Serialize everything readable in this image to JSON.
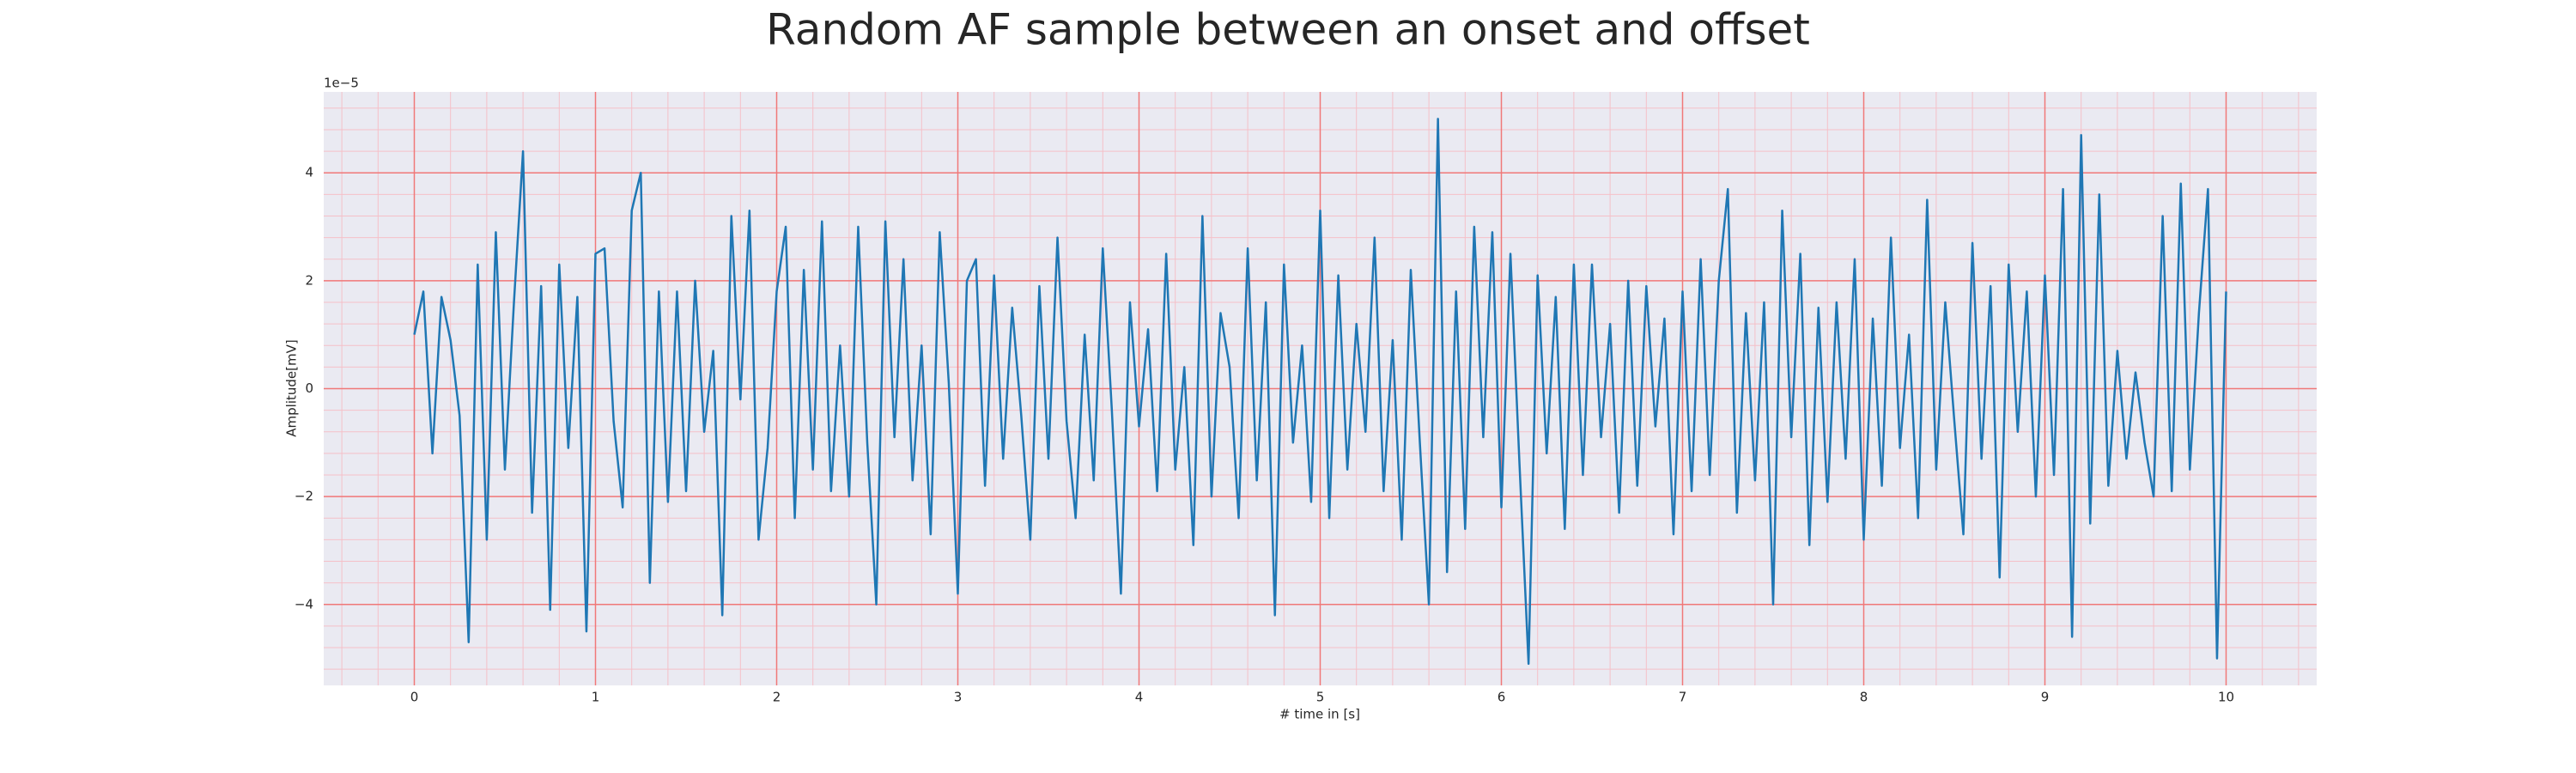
{
  "chart_data": {
    "type": "line",
    "title": "Random AF sample between an onset and offset",
    "x_label": "# time in [s]",
    "y_label": "Amplitude[mV]",
    "y_offset_text": "1e−5",
    "x": [
      0,
      0.05,
      0.1,
      0.15,
      0.2,
      0.25,
      0.3,
      0.35,
      0.4,
      0.45,
      0.5,
      0.55,
      0.6,
      0.65,
      0.7,
      0.75,
      0.8,
      0.85,
      0.9,
      0.95,
      1,
      1.05,
      1.1,
      1.15,
      1.2,
      1.25,
      1.3,
      1.35,
      1.4,
      1.45,
      1.5,
      1.55,
      1.6,
      1.65,
      1.7,
      1.75,
      1.8,
      1.85,
      1.9,
      1.95,
      2,
      2.05,
      2.1,
      2.15,
      2.2,
      2.25,
      2.3,
      2.35,
      2.4,
      2.45,
      2.5,
      2.55,
      2.6,
      2.65,
      2.7,
      2.75,
      2.8,
      2.85,
      2.9,
      2.95,
      3,
      3.05,
      3.1,
      3.15,
      3.2,
      3.25,
      3.3,
      3.35,
      3.4,
      3.45,
      3.5,
      3.55,
      3.6,
      3.65,
      3.7,
      3.75,
      3.8,
      3.85,
      3.9,
      3.95,
      4,
      4.05,
      4.1,
      4.15,
      4.2,
      4.25,
      4.3,
      4.35,
      4.4,
      4.45,
      4.5,
      4.55,
      4.6,
      4.65,
      4.7,
      4.75,
      4.8,
      4.85,
      4.9,
      4.95,
      5,
      5.05,
      5.1,
      5.15,
      5.2,
      5.25,
      5.3,
      5.35,
      5.4,
      5.45,
      5.5,
      5.55,
      5.6,
      5.65,
      5.7,
      5.75,
      5.8,
      5.85,
      5.9,
      5.95,
      6,
      6.05,
      6.1,
      6.15,
      6.2,
      6.25,
      6.3,
      6.35,
      6.4,
      6.45,
      6.5,
      6.55,
      6.6,
      6.65,
      6.7,
      6.75,
      6.8,
      6.85,
      6.9,
      6.95,
      7,
      7.05,
      7.1,
      7.15,
      7.2,
      7.25,
      7.3,
      7.35,
      7.4,
      7.45,
      7.5,
      7.55,
      7.6,
      7.65,
      7.7,
      7.75,
      7.8,
      7.85,
      7.9,
      7.95,
      8,
      8.05,
      8.1,
      8.15,
      8.2,
      8.25,
      8.3,
      8.35,
      8.4,
      8.45,
      8.5,
      8.55,
      8.6,
      8.65,
      8.7,
      8.75,
      8.8,
      8.85,
      8.9,
      8.95,
      9,
      9.05,
      9.1,
      9.15,
      9.2,
      9.25,
      9.3,
      9.35,
      9.4,
      9.45,
      9.5,
      9.55,
      9.6,
      9.65,
      9.7,
      9.75,
      9.8,
      9.85,
      9.9,
      9.95,
      10
    ],
    "series": [
      {
        "color": "#1f77b4",
        "values": [
          1.0,
          1.8,
          -1.2,
          1.7,
          0.9,
          -0.5,
          -4.7,
          2.3,
          -2.8,
          2.9,
          -1.5,
          1.6,
          4.4,
          -2.3,
          1.9,
          -4.1,
          2.3,
          -1.1,
          1.7,
          -4.5,
          2.5,
          2.6,
          -0.6,
          -2.2,
          3.3,
          4.0,
          -3.6,
          1.8,
          -2.1,
          1.8,
          -1.9,
          2.0,
          -0.8,
          0.7,
          -4.2,
          3.2,
          -0.2,
          3.3,
          -2.8,
          -1.1,
          1.8,
          3.0,
          -2.4,
          2.2,
          -1.5,
          3.1,
          -1.9,
          0.8,
          -2.0,
          3.0,
          -1.0,
          -4.0,
          3.1,
          -0.9,
          2.4,
          -1.7,
          0.8,
          -2.7,
          2.9,
          0.1,
          -3.8,
          2.0,
          2.4,
          -1.8,
          2.1,
          -1.3,
          1.5,
          -0.5,
          -2.8,
          1.9,
          -1.3,
          2.8,
          -0.6,
          -2.4,
          1.0,
          -1.7,
          2.6,
          -0.4,
          -3.8,
          1.6,
          -0.7,
          1.1,
          -1.9,
          2.5,
          -1.5,
          0.4,
          -2.9,
          3.2,
          -2.0,
          1.4,
          0.4,
          -2.4,
          2.6,
          -1.7,
          1.6,
          -4.2,
          2.3,
          -1.0,
          0.8,
          -2.1,
          3.3,
          -2.4,
          2.1,
          -1.5,
          1.2,
          -0.8,
          2.8,
          -1.9,
          0.9,
          -2.8,
          2.2,
          -1.0,
          -4.0,
          5.0,
          -3.4,
          1.8,
          -2.6,
          3.0,
          -0.9,
          2.9,
          -2.2,
          2.5,
          -1.4,
          -5.1,
          2.1,
          -1.2,
          1.7,
          -2.6,
          2.3,
          -1.6,
          2.3,
          -0.9,
          1.2,
          -2.3,
          2.0,
          -1.8,
          1.9,
          -0.7,
          1.3,
          -2.7,
          1.8,
          -1.9,
          2.4,
          -1.6,
          2.0,
          3.7,
          -2.3,
          1.4,
          -1.7,
          1.6,
          -4.0,
          3.3,
          -0.9,
          2.5,
          -2.9,
          1.5,
          -2.1,
          1.6,
          -1.3,
          2.4,
          -2.8,
          1.3,
          -1.8,
          2.8,
          -1.1,
          1.0,
          -2.4,
          3.5,
          -1.5,
          1.6,
          -0.6,
          -2.7,
          2.7,
          -1.3,
          1.9,
          -3.5,
          2.3,
          -0.8,
          1.8,
          -2.0,
          2.1,
          -1.6,
          3.7,
          -4.6,
          4.7,
          -2.5,
          3.6,
          -1.8,
          0.7,
          -1.3,
          0.3,
          -1.0,
          -2.0,
          3.2,
          -1.9,
          3.8,
          -1.5,
          1.4,
          3.7,
          -5.0,
          1.8
        ]
      }
    ],
    "xlim": [
      -0.5,
      10.5
    ],
    "ylim": [
      -5.5,
      5.5
    ],
    "xticks": [
      0,
      1,
      2,
      3,
      4,
      5,
      6,
      7,
      8,
      9,
      10
    ],
    "yticks": [
      {
        "value": -4,
        "label": "−4"
      },
      {
        "value": -2,
        "label": "−2"
      },
      0,
      2,
      4
    ],
    "grid": true,
    "minor_grid": true,
    "background": "#eaeaf2",
    "grid_color": "#f07878",
    "minor_grid_color": "#f5c0c8"
  }
}
